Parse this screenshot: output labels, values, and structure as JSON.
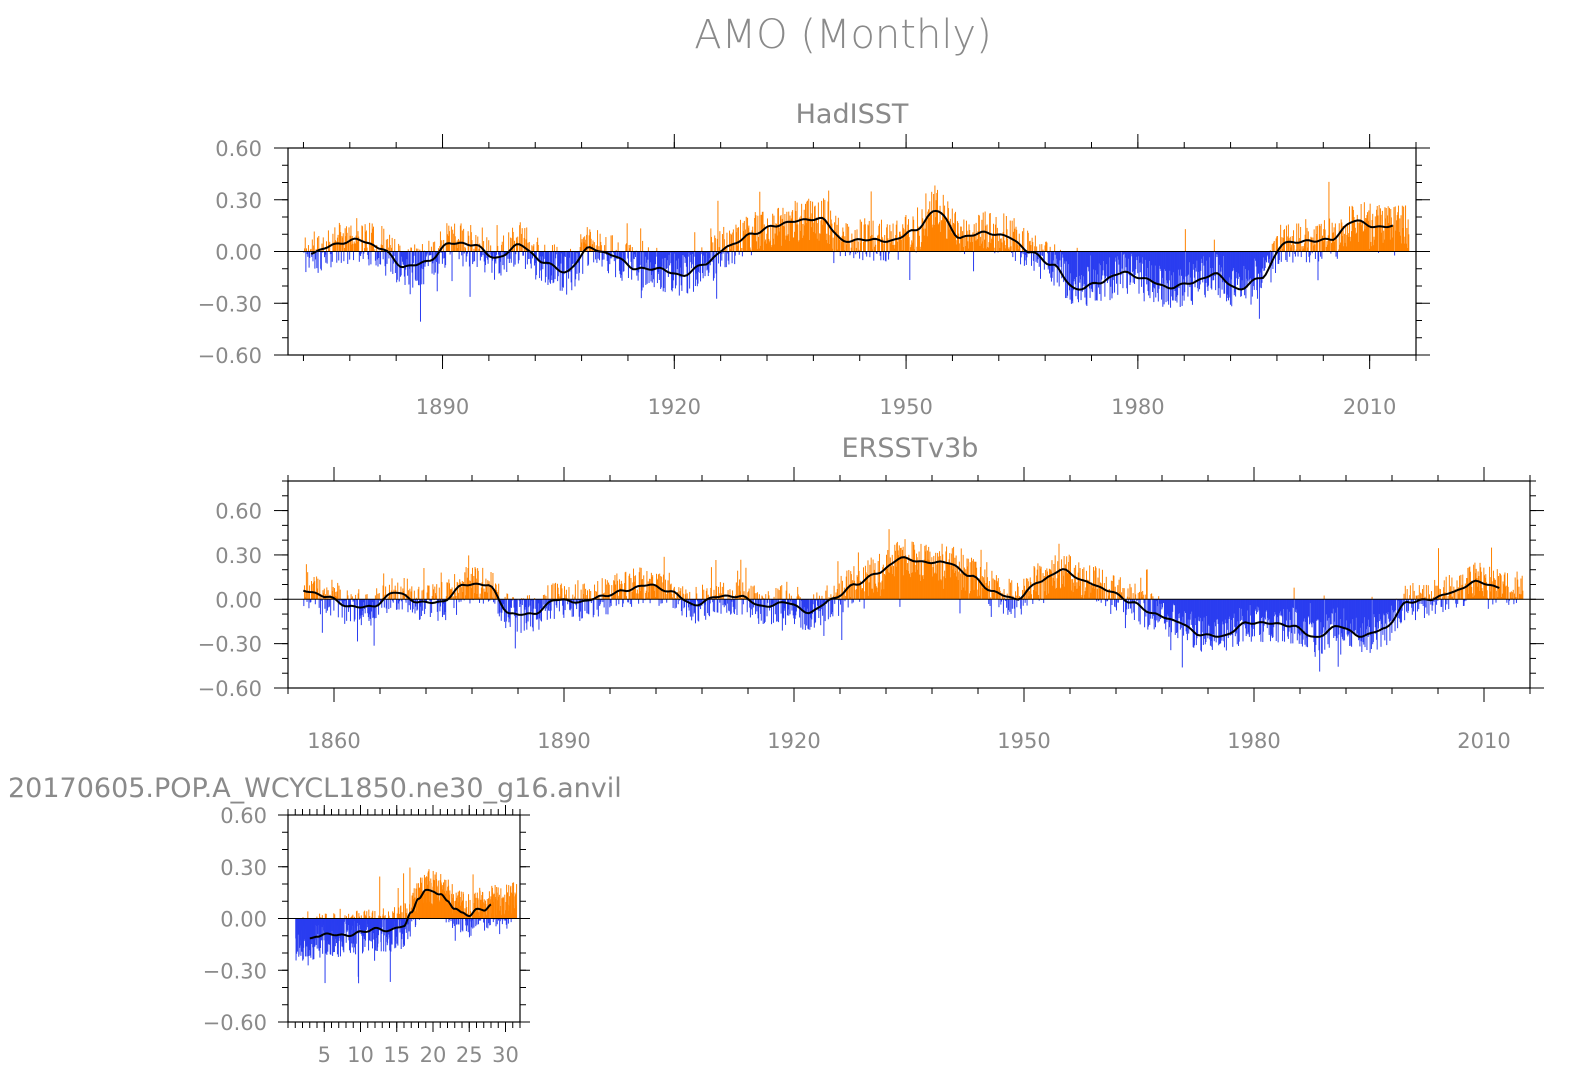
{
  "figure": {
    "title": "AMO (Monthly)"
  },
  "colors": {
    "positive": "#ff8200",
    "negative": "#2a3df0",
    "smooth": "#000000",
    "text": "#8a8a8a"
  },
  "chart_data": [
    {
      "type": "bar",
      "title": "HadISST",
      "xlim": [
        1870,
        2016
      ],
      "ylim": [
        -0.6,
        0.6
      ],
      "yticks": [
        0.6,
        0.3,
        0.0,
        -0.3,
        -0.6
      ],
      "ytick_labels": [
        "0.60",
        "0.30",
        "0.00",
        "−0.30",
        "−0.60"
      ],
      "xticks": [
        1890,
        1920,
        1950,
        1980,
        2010
      ],
      "xtick_labels": [
        "1890",
        "1920",
        "1950",
        "1980",
        "2010"
      ],
      "smoothed_anchors": {
        "x": [
          1873,
          1876,
          1879,
          1882,
          1885,
          1888,
          1891,
          1894,
          1897,
          1900,
          1903,
          1906,
          1909,
          1912,
          1915,
          1918,
          1921,
          1924,
          1927,
          1930,
          1933,
          1936,
          1939,
          1942,
          1945,
          1948,
          1951,
          1954,
          1957,
          1960,
          1963,
          1966,
          1969,
          1972,
          1975,
          1978,
          1981,
          1984,
          1987,
          1990,
          1993,
          1996,
          1999,
          2002,
          2005,
          2008,
          2011,
          2013
        ],
        "y": [
          -0.01,
          0.04,
          0.07,
          0.02,
          -0.09,
          -0.06,
          0.05,
          0.04,
          -0.04,
          0.04,
          -0.06,
          -0.12,
          0.02,
          -0.02,
          -0.1,
          -0.1,
          -0.14,
          -0.07,
          0.03,
          0.1,
          0.15,
          0.18,
          0.19,
          0.06,
          0.07,
          0.06,
          0.12,
          0.24,
          0.08,
          0.11,
          0.09,
          0.0,
          -0.08,
          -0.22,
          -0.18,
          -0.12,
          -0.16,
          -0.21,
          -0.18,
          -0.13,
          -0.22,
          -0.15,
          0.05,
          0.06,
          0.07,
          0.18,
          0.14,
          0.15
        ]
      }
    },
    {
      "type": "bar",
      "title": "ERSSTv3b",
      "xlim": [
        1854,
        2016
      ],
      "ylim": [
        -0.6,
        0.8
      ],
      "yticks": [
        0.6,
        0.3,
        0.0,
        -0.3,
        -0.6
      ],
      "ytick_labels": [
        "0.60",
        "0.30",
        "0.00",
        "−0.30",
        "−0.60"
      ],
      "xticks": [
        1860,
        1890,
        1920,
        1950,
        1980,
        2010
      ],
      "xtick_labels": [
        "1860",
        "1890",
        "1920",
        "1950",
        "1980",
        "2010"
      ],
      "smoothed_anchors": {
        "x": [
          1856,
          1859,
          1862,
          1865,
          1868,
          1871,
          1874,
          1877,
          1880,
          1883,
          1886,
          1889,
          1892,
          1895,
          1898,
          1901,
          1904,
          1907,
          1910,
          1913,
          1916,
          1919,
          1922,
          1925,
          1928,
          1931,
          1934,
          1937,
          1940,
          1943,
          1946,
          1949,
          1952,
          1955,
          1958,
          1961,
          1964,
          1967,
          1970,
          1973,
          1976,
          1979,
          1982,
          1985,
          1988,
          1991,
          1994,
          1997,
          2000,
          2003,
          2006,
          2009,
          2012
        ],
        "y": [
          0.06,
          0.02,
          -0.05,
          -0.05,
          0.05,
          -0.02,
          -0.02,
          0.1,
          0.1,
          -0.1,
          -0.1,
          0.0,
          -0.02,
          0.02,
          0.06,
          0.1,
          0.05,
          -0.04,
          0.02,
          0.02,
          -0.05,
          -0.02,
          -0.09,
          0.0,
          0.1,
          0.18,
          0.28,
          0.25,
          0.25,
          0.16,
          0.05,
          0.0,
          0.12,
          0.2,
          0.12,
          0.06,
          -0.02,
          -0.1,
          -0.15,
          -0.24,
          -0.25,
          -0.16,
          -0.16,
          -0.18,
          -0.26,
          -0.18,
          -0.25,
          -0.2,
          -0.02,
          0.0,
          0.05,
          0.12,
          0.08
        ]
      }
    },
    {
      "type": "bar",
      "title": "20170605.POP.A_WCYCL1850.ne30_g16.anvil",
      "xlim": [
        0,
        32
      ],
      "ylim": [
        -0.6,
        0.6
      ],
      "yticks": [
        0.6,
        0.3,
        0.0,
        -0.3,
        -0.6
      ],
      "ytick_labels": [
        "0.60",
        "0.30",
        "0.00",
        "−0.30",
        "−0.60"
      ],
      "xticks": [
        5,
        10,
        15,
        20,
        25,
        30
      ],
      "xtick_labels": [
        "5",
        "10",
        "15",
        "20",
        "25",
        "30"
      ],
      "smoothed_anchors": {
        "x": [
          3,
          4,
          6,
          8,
          10,
          12,
          14,
          16,
          17,
          18,
          19,
          20,
          21,
          22,
          23,
          24,
          25,
          26,
          27,
          28
        ],
        "y": [
          -0.12,
          -0.1,
          -0.09,
          -0.1,
          -0.08,
          -0.06,
          -0.07,
          -0.04,
          0.03,
          0.12,
          0.16,
          0.16,
          0.14,
          0.1,
          0.06,
          0.03,
          0.02,
          0.05,
          0.05,
          0.08
        ]
      }
    }
  ]
}
